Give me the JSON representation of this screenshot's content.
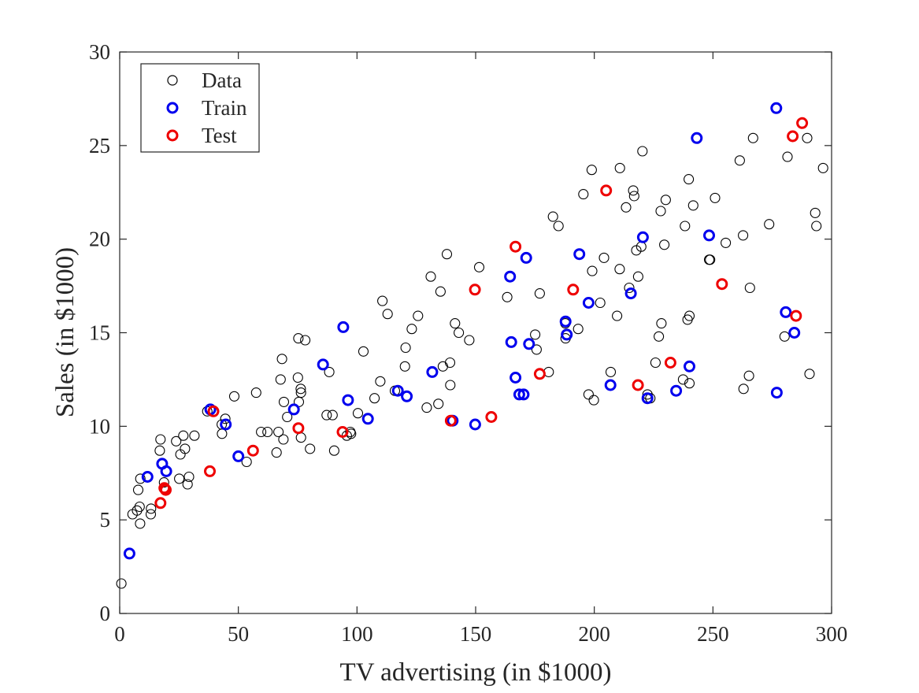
{
  "chart_data": {
    "type": "scatter",
    "title": "",
    "xlabel": "TV advertising (in $1000)",
    "ylabel": "Sales (in $1000)",
    "xlim": [
      0,
      300
    ],
    "ylim": [
      0,
      30
    ],
    "xticks": [
      0,
      50,
      100,
      150,
      200,
      250,
      300
    ],
    "yticks": [
      0,
      5,
      10,
      15,
      20,
      25,
      30
    ],
    "grid": false,
    "legend_position": "top-left",
    "series": [
      {
        "name": "Data",
        "color": "#000000",
        "points": [
          [
            0.7,
            1.6
          ],
          [
            5.4,
            5.3
          ],
          [
            7.3,
            5.5
          ],
          [
            7.8,
            6.6
          ],
          [
            8.4,
            5.7
          ],
          [
            8.6,
            4.8
          ],
          [
            8.7,
            7.2
          ],
          [
            13.1,
            5.3
          ],
          [
            13.2,
            5.6
          ],
          [
            16.9,
            8.7
          ],
          [
            17.2,
            9.3
          ],
          [
            18.7,
            7.0
          ],
          [
            23.8,
            9.2
          ],
          [
            25.1,
            7.2
          ],
          [
            25.6,
            8.5
          ],
          [
            26.8,
            9.5
          ],
          [
            27.5,
            8.8
          ],
          [
            28.6,
            6.9
          ],
          [
            29.2,
            7.3
          ],
          [
            31.5,
            9.5
          ],
          [
            36.9,
            10.8
          ],
          [
            43.0,
            10.1
          ],
          [
            43.1,
            9.6
          ],
          [
            44.5,
            10.4
          ],
          [
            48.3,
            11.6
          ],
          [
            53.5,
            8.1
          ],
          [
            57.5,
            11.8
          ],
          [
            59.6,
            9.7
          ],
          [
            62.3,
            9.7
          ],
          [
            66.1,
            8.6
          ],
          [
            66.9,
            9.7
          ],
          [
            67.8,
            12.5
          ],
          [
            68.4,
            13.6
          ],
          [
            69.0,
            9.3
          ],
          [
            69.2,
            11.3
          ],
          [
            70.6,
            10.5
          ],
          [
            75.1,
            12.6
          ],
          [
            75.3,
            14.7
          ],
          [
            75.5,
            11.3
          ],
          [
            76.3,
            12.0
          ],
          [
            76.4,
            9.4
          ],
          [
            76.4,
            11.8
          ],
          [
            78.2,
            14.6
          ],
          [
            80.2,
            8.8
          ],
          [
            87.2,
            10.6
          ],
          [
            88.3,
            12.9
          ],
          [
            89.7,
            10.6
          ],
          [
            90.4,
            8.7
          ],
          [
            95.7,
            9.5
          ],
          [
            97.2,
            9.7
          ],
          [
            97.5,
            9.6
          ],
          [
            100.4,
            10.7
          ],
          [
            102.7,
            14.0
          ],
          [
            107.4,
            11.5
          ],
          [
            109.8,
            12.4
          ],
          [
            110.7,
            16.7
          ],
          [
            112.9,
            16.0
          ],
          [
            116.0,
            11.9
          ],
          [
            120.2,
            13.2
          ],
          [
            120.5,
            14.2
          ],
          [
            123.1,
            15.2
          ],
          [
            125.7,
            15.9
          ],
          [
            129.4,
            11.0
          ],
          [
            131.1,
            18.0
          ],
          [
            134.3,
            11.2
          ],
          [
            135.2,
            17.2
          ],
          [
            136.2,
            13.2
          ],
          [
            137.9,
            19.2
          ],
          [
            139.2,
            13.4
          ],
          [
            139.3,
            12.2
          ],
          [
            141.3,
            15.5
          ],
          [
            142.9,
            15.0
          ],
          [
            147.3,
            14.6
          ],
          [
            151.5,
            18.5
          ],
          [
            163.3,
            16.9
          ],
          [
            175.1,
            14.9
          ],
          [
            175.7,
            14.1
          ],
          [
            177.0,
            17.1
          ],
          [
            180.8,
            12.9
          ],
          [
            182.6,
            21.2
          ],
          [
            184.9,
            20.7
          ],
          [
            187.8,
            15.5
          ],
          [
            187.9,
            14.7
          ],
          [
            193.2,
            15.2
          ],
          [
            195.4,
            22.4
          ],
          [
            197.6,
            11.7
          ],
          [
            198.9,
            23.7
          ],
          [
            199.1,
            18.3
          ],
          [
            199.8,
            11.4
          ],
          [
            202.5,
            16.6
          ],
          [
            204.1,
            19.0
          ],
          [
            206.9,
            12.9
          ],
          [
            209.6,
            15.9
          ],
          [
            210.7,
            18.4
          ],
          [
            210.8,
            23.8
          ],
          [
            213.4,
            21.7
          ],
          [
            214.7,
            17.4
          ],
          [
            216.4,
            22.6
          ],
          [
            216.8,
            22.3
          ],
          [
            217.7,
            19.4
          ],
          [
            218.5,
            18.0
          ],
          [
            219.8,
            19.6
          ],
          [
            220.3,
            24.7
          ],
          [
            222.4,
            11.7
          ],
          [
            223.6,
            11.5
          ],
          [
            225.8,
            13.4
          ],
          [
            227.2,
            14.8
          ],
          [
            228.0,
            21.5
          ],
          [
            228.3,
            15.5
          ],
          [
            229.5,
            19.7
          ],
          [
            230.1,
            22.1
          ],
          [
            237.4,
            12.5
          ],
          [
            238.2,
            20.7
          ],
          [
            239.3,
            15.7
          ],
          [
            239.8,
            23.2
          ],
          [
            240.1,
            15.9
          ],
          [
            240.1,
            12.3
          ],
          [
            241.7,
            21.8
          ],
          [
            248.4,
            18.9
          ],
          [
            248.8,
            18.9
          ],
          [
            250.9,
            22.2
          ],
          [
            255.4,
            19.8
          ],
          [
            261.3,
            24.2
          ],
          [
            262.7,
            20.2
          ],
          [
            262.9,
            12.0
          ],
          [
            265.2,
            12.7
          ],
          [
            265.6,
            17.4
          ],
          [
            266.9,
            25.4
          ],
          [
            273.7,
            20.8
          ],
          [
            280.2,
            14.8
          ],
          [
            281.4,
            24.4
          ],
          [
            289.7,
            25.4
          ],
          [
            290.7,
            12.8
          ],
          [
            293.1,
            21.4
          ],
          [
            293.6,
            20.7
          ],
          [
            296.4,
            23.8
          ]
        ]
      },
      {
        "name": "Train",
        "color": "#0000ee",
        "points": [
          [
            4.1,
            3.2
          ],
          [
            11.7,
            7.3
          ],
          [
            17.9,
            8.0
          ],
          [
            19.6,
            7.6
          ],
          [
            38.2,
            10.9
          ],
          [
            44.7,
            10.1
          ],
          [
            50.0,
            8.4
          ],
          [
            73.4,
            10.9
          ],
          [
            85.7,
            13.3
          ],
          [
            94.2,
            15.3
          ],
          [
            96.2,
            11.4
          ],
          [
            104.6,
            10.4
          ],
          [
            117.2,
            11.9
          ],
          [
            121.0,
            11.6
          ],
          [
            131.7,
            12.9
          ],
          [
            140.3,
            10.3
          ],
          [
            149.8,
            10.1
          ],
          [
            164.5,
            18.0
          ],
          [
            165.0,
            14.5
          ],
          [
            166.8,
            12.6
          ],
          [
            168.4,
            11.7
          ],
          [
            170.2,
            11.7
          ],
          [
            171.3,
            19.0
          ],
          [
            172.5,
            14.4
          ],
          [
            187.9,
            15.6
          ],
          [
            188.4,
            14.9
          ],
          [
            193.7,
            19.2
          ],
          [
            197.6,
            16.6
          ],
          [
            206.8,
            12.2
          ],
          [
            215.4,
            17.1
          ],
          [
            220.5,
            20.1
          ],
          [
            222.4,
            11.5
          ],
          [
            234.5,
            11.9
          ],
          [
            240.1,
            13.2
          ],
          [
            243.2,
            25.4
          ],
          [
            248.4,
            20.2
          ],
          [
            276.7,
            27.0
          ],
          [
            276.9,
            11.8
          ],
          [
            280.7,
            16.1
          ],
          [
            284.3,
            15.0
          ]
        ]
      },
      {
        "name": "Test",
        "color": "#ee0000",
        "points": [
          [
            17.2,
            5.9
          ],
          [
            18.8,
            6.7
          ],
          [
            19.4,
            6.6
          ],
          [
            38.0,
            7.6
          ],
          [
            39.5,
            10.8
          ],
          [
            56.2,
            8.7
          ],
          [
            75.3,
            9.9
          ],
          [
            93.9,
            9.7
          ],
          [
            139.5,
            10.3
          ],
          [
            149.7,
            17.3
          ],
          [
            156.6,
            10.5
          ],
          [
            166.8,
            19.6
          ],
          [
            177.0,
            12.8
          ],
          [
            191.1,
            17.3
          ],
          [
            205.0,
            22.6
          ],
          [
            218.4,
            12.2
          ],
          [
            232.1,
            13.4
          ],
          [
            253.8,
            17.6
          ],
          [
            283.6,
            25.5
          ],
          [
            285.0,
            15.9
          ],
          [
            287.6,
            26.2
          ]
        ]
      }
    ]
  }
}
